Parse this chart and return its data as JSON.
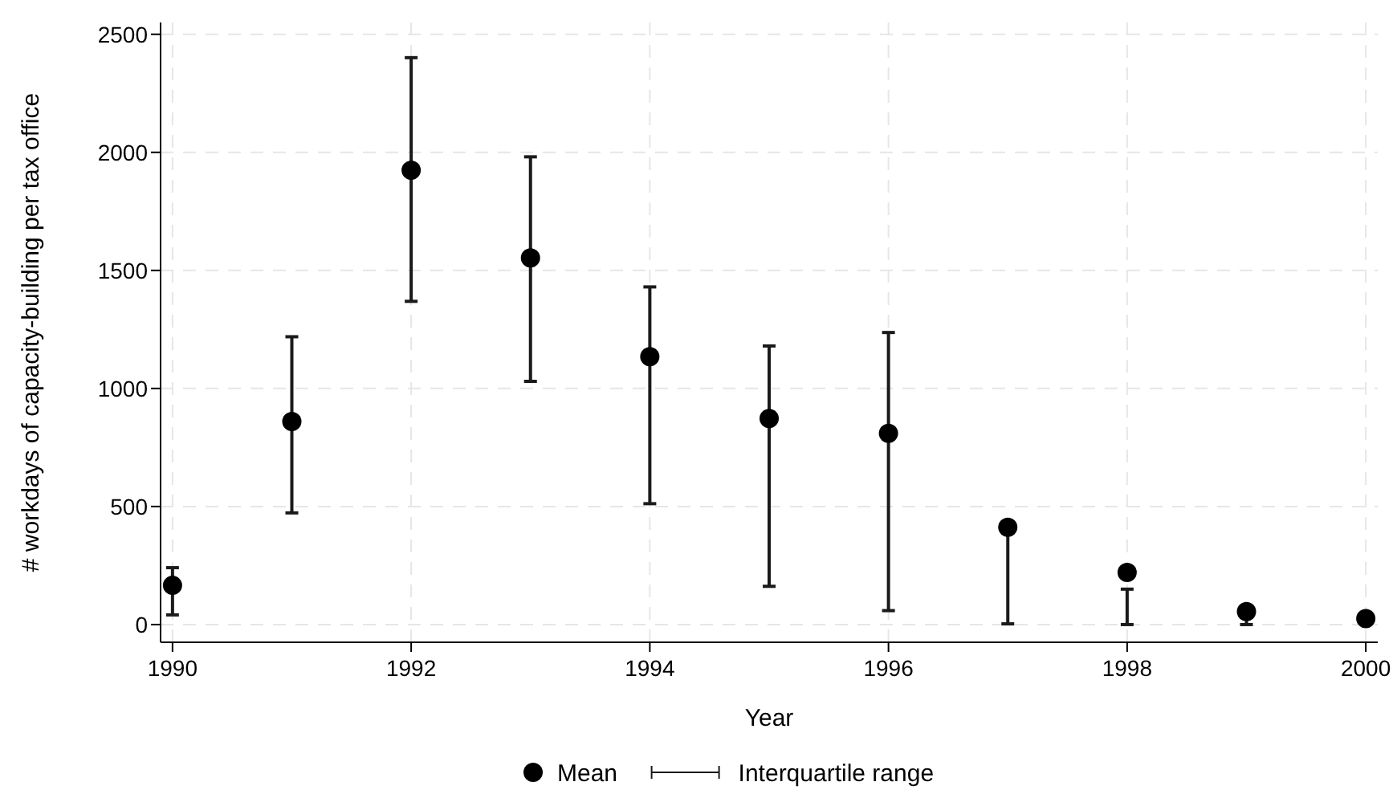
{
  "chart_data": {
    "type": "scatter",
    "xlabel": "Year",
    "ylabel": "# workdays of capacity-building per tax office",
    "x": [
      1990,
      1991,
      1992,
      1993,
      1994,
      1995,
      1996,
      1997,
      1998,
      1999,
      2000
    ],
    "series": [
      {
        "name": "Mean",
        "color": "#000000",
        "values": [
          166,
          860,
          1924,
          1553,
          1135,
          873,
          810,
          412,
          221,
          55,
          25
        ],
        "errors": [
          [
            41,
            241
          ],
          [
            473,
            1219
          ],
          [
            1369,
            2401
          ],
          [
            1030,
            1981
          ],
          [
            512,
            1430
          ],
          [
            162,
            1180
          ],
          [
            59,
            1237
          ],
          [
            3,
            400
          ],
          [
            0,
            150
          ],
          [
            0,
            30
          ],
          null
        ]
      }
    ],
    "annotations": [
      "Interquartile range"
    ],
    "marker": "circle",
    "xlim": [
      1989.9,
      2000.1
    ],
    "xticks": [
      1990,
      1992,
      1994,
      1996,
      1998,
      2000
    ],
    "ylim": [
      -75,
      2550
    ],
    "yticks": [
      0,
      500,
      1000,
      1500,
      2000,
      2500
    ],
    "grid": true,
    "legend": "bottom"
  }
}
